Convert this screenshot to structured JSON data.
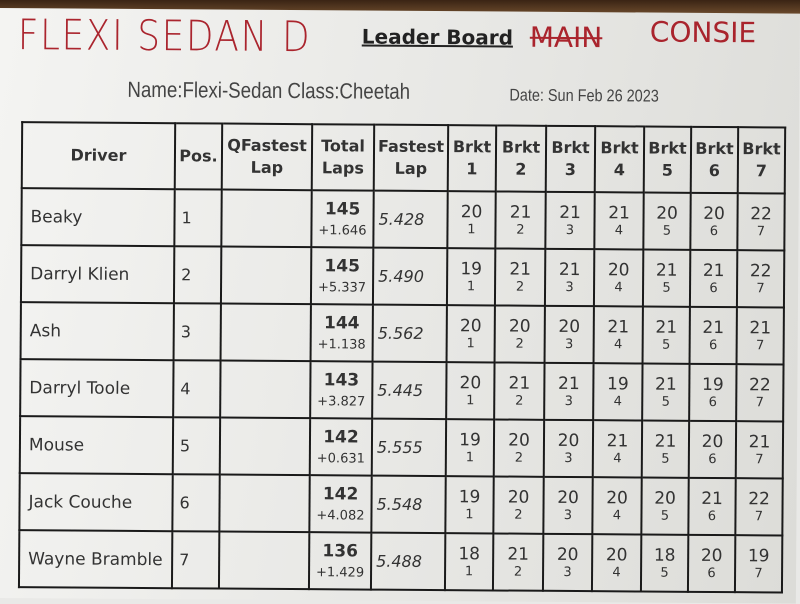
{
  "sheet": {
    "title": "Leader Board",
    "name_line": "Name:Flexi-Sedan Class:Cheetah",
    "date_line": "Date: Sun Feb 26 2023"
  },
  "handwriting": {
    "main": "FLEXI SEDAN D",
    "top_right": "CONSIE",
    "crossed_out": "MAIN",
    "color": "#a5141e"
  },
  "table": {
    "headers": [
      "Driver",
      "Pos.",
      "QFastest Lap",
      "Total Laps",
      "Fastest Lap",
      "Brkt 1",
      "Brkt 2",
      "Brkt 3",
      "Brkt 4",
      "Brkt 5",
      "Brkt 6",
      "Brkt 7"
    ],
    "rows": [
      {
        "driver": "Beaky",
        "pos": "1",
        "qfastest": "",
        "laps": "145",
        "gap": "+1.646",
        "fastest": "5.428",
        "brackets": [
          [
            "20",
            "1"
          ],
          [
            "21",
            "2"
          ],
          [
            "21",
            "3"
          ],
          [
            "21",
            "4"
          ],
          [
            "20",
            "5"
          ],
          [
            "20",
            "6"
          ],
          [
            "22",
            "7"
          ]
        ]
      },
      {
        "driver": "Darryl Klien",
        "pos": "2",
        "qfastest": "",
        "laps": "145",
        "gap": "+5.337",
        "fastest": "5.490",
        "brackets": [
          [
            "19",
            "1"
          ],
          [
            "21",
            "2"
          ],
          [
            "21",
            "3"
          ],
          [
            "20",
            "4"
          ],
          [
            "21",
            "5"
          ],
          [
            "21",
            "6"
          ],
          [
            "22",
            "7"
          ]
        ]
      },
      {
        "driver": "Ash",
        "pos": "3",
        "qfastest": "",
        "laps": "144",
        "gap": "+1.138",
        "fastest": "5.562",
        "brackets": [
          [
            "20",
            "1"
          ],
          [
            "20",
            "2"
          ],
          [
            "20",
            "3"
          ],
          [
            "21",
            "4"
          ],
          [
            "21",
            "5"
          ],
          [
            "21",
            "6"
          ],
          [
            "21",
            "7"
          ]
        ]
      },
      {
        "driver": "Darryl Toole",
        "pos": "4",
        "qfastest": "",
        "laps": "143",
        "gap": "+3.827",
        "fastest": "5.445",
        "brackets": [
          [
            "20",
            "1"
          ],
          [
            "21",
            "2"
          ],
          [
            "21",
            "3"
          ],
          [
            "19",
            "4"
          ],
          [
            "21",
            "5"
          ],
          [
            "19",
            "6"
          ],
          [
            "22",
            "7"
          ]
        ]
      },
      {
        "driver": "Mouse",
        "pos": "5",
        "qfastest": "",
        "laps": "142",
        "gap": "+0.631",
        "fastest": "5.555",
        "brackets": [
          [
            "19",
            "1"
          ],
          [
            "20",
            "2"
          ],
          [
            "20",
            "3"
          ],
          [
            "21",
            "4"
          ],
          [
            "21",
            "5"
          ],
          [
            "20",
            "6"
          ],
          [
            "21",
            "7"
          ]
        ]
      },
      {
        "driver": "Jack Couche",
        "pos": "6",
        "qfastest": "",
        "laps": "142",
        "gap": "+4.082",
        "fastest": "5.548",
        "brackets": [
          [
            "19",
            "1"
          ],
          [
            "20",
            "2"
          ],
          [
            "20",
            "3"
          ],
          [
            "20",
            "4"
          ],
          [
            "20",
            "5"
          ],
          [
            "21",
            "6"
          ],
          [
            "22",
            "7"
          ]
        ]
      },
      {
        "driver": "Wayne Bramble",
        "pos": "7",
        "qfastest": "",
        "laps": "136",
        "gap": "+1.429",
        "fastest": "5.488",
        "brackets": [
          [
            "18",
            "1"
          ],
          [
            "21",
            "2"
          ],
          [
            "20",
            "3"
          ],
          [
            "20",
            "4"
          ],
          [
            "18",
            "5"
          ],
          [
            "20",
            "6"
          ],
          [
            "19",
            "7"
          ]
        ]
      }
    ]
  }
}
